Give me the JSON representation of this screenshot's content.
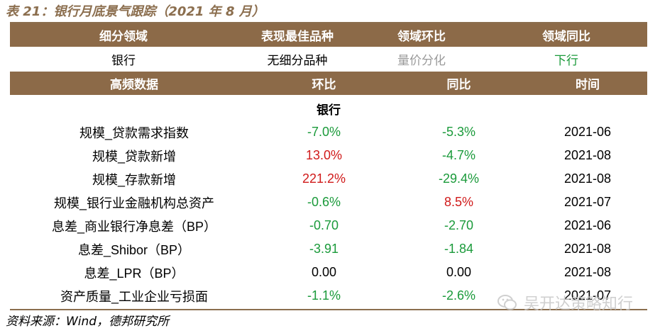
{
  "title": "表 21：银行月底景气跟踪（2021 年 8 月）",
  "header1": [
    "细分领域",
    "表现最佳品种",
    "领域环比",
    "领域同比"
  ],
  "summary": {
    "sector": "银行",
    "best": "无细分品种",
    "mom": "量价分化",
    "yoy": "下行"
  },
  "header2": [
    "高频数据",
    "环比",
    "同比",
    "时间"
  ],
  "section": "银行",
  "rows": [
    {
      "name": "规模_贷款需求指数",
      "mom": "-7.0%",
      "yoy": "-5.3%",
      "date": "2021-06"
    },
    {
      "name": "规模_贷款新增",
      "mom": "13.0%",
      "yoy": "-4.7%",
      "date": "2021-08"
    },
    {
      "name": "规模_存款新增",
      "mom": "221.2%",
      "yoy": "-29.4%",
      "date": "2021-08"
    },
    {
      "name": "规模_银行业金融机构总资产",
      "mom": "-0.6%",
      "yoy": "8.5%",
      "date": "2021-07"
    },
    {
      "name": "息差_商业银行净息差（BP）",
      "mom": "-0.70",
      "yoy": "-2.70",
      "date": "2021-06"
    },
    {
      "name": "息差_Shibor（BP）",
      "mom": "-3.91",
      "yoy": "-1.84",
      "date": "2021-08"
    },
    {
      "name": "息差_LPR（BP）",
      "mom": "0.00",
      "yoy": "0.00",
      "date": "2021-08"
    },
    {
      "name": "资产质量_工业企业亏损面",
      "mom": "-1.1%",
      "yoy": "-2.6%",
      "date": "2021-07"
    }
  ],
  "source": "资料来源：Wind，德邦研究所",
  "watermark": "吴开达策略知行",
  "colors": {
    "header_bg": "#8C6A48",
    "positive": "#d01a1a",
    "negative": "#1a9a3a",
    "neutral": "#9a9a9a"
  }
}
